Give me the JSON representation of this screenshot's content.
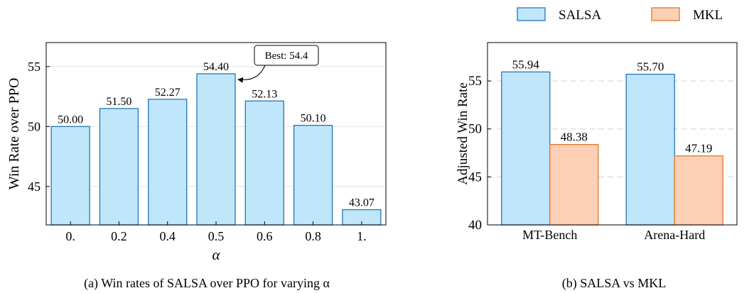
{
  "chart_data": [
    {
      "type": "bar",
      "categories": [
        "0.",
        "0.2",
        "0.4",
        "0.5",
        "0.6",
        "0.8",
        "1."
      ],
      "values": [
        50.0,
        51.5,
        52.27,
        54.4,
        52.13,
        50.1,
        43.07
      ],
      "value_labels": [
        "50.00",
        "51.50",
        "52.27",
        "54.40",
        "52.13",
        "50.10",
        "43.07"
      ],
      "xlabel": "α",
      "ylabel": "Win Rate over PPO",
      "ylim": [
        41.8,
        57.0
      ],
      "yticks": [
        45,
        50,
        55
      ],
      "grid": true,
      "annotation": {
        "text": "Best: 54.4",
        "category": "0.5"
      },
      "caption": "(a) Win rates of SALSA over PPO for varying α",
      "colors": {
        "fill": "#bfe6fb",
        "edge": "#2376b7"
      }
    },
    {
      "type": "bar",
      "categories": [
        "MT-Bench",
        "Arena-Hard"
      ],
      "series": [
        {
          "name": "SALSA",
          "values": [
            55.94,
            55.7
          ],
          "value_labels": [
            "55.94",
            "55.70"
          ],
          "fill": "#bfe6fb",
          "edge": "#2376b7"
        },
        {
          "name": "MKL",
          "values": [
            48.38,
            47.19
          ],
          "value_labels": [
            "48.38",
            "47.19"
          ],
          "fill": "#fdd0b5",
          "edge": "#e07a2c"
        }
      ],
      "xlabel": "",
      "ylabel": "Adjusted Win Rate",
      "ylim": [
        40,
        59
      ],
      "yticks": [
        40,
        45,
        50,
        55
      ],
      "grid": true,
      "legend": "top",
      "caption": "(b) SALSA vs MKL"
    }
  ]
}
